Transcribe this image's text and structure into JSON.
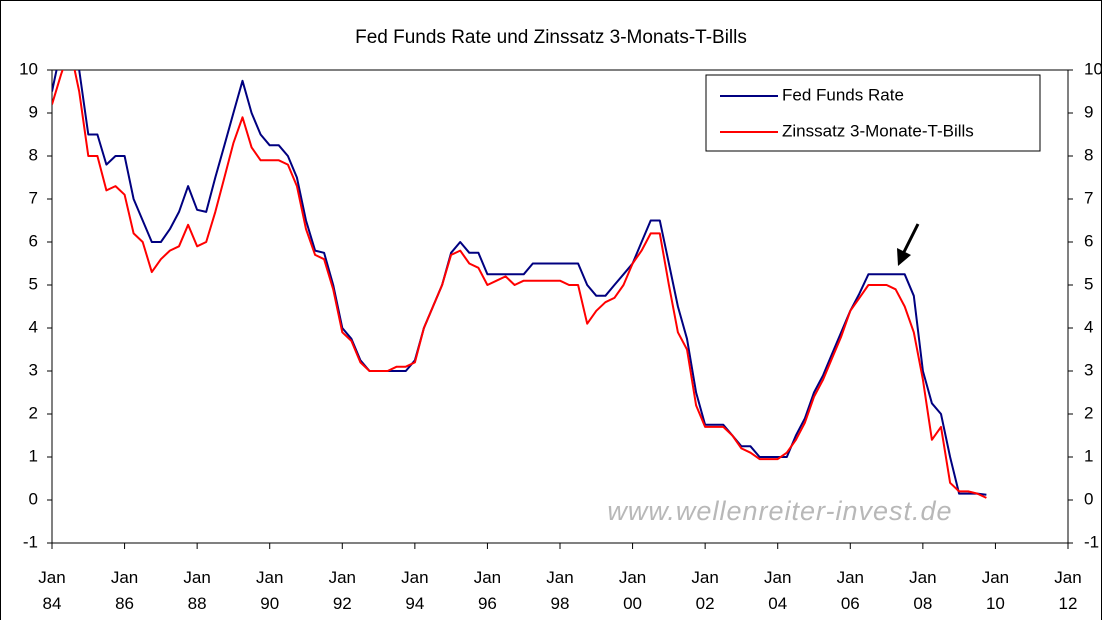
{
  "chart_data": {
    "type": "line",
    "title": "Fed Funds Rate und Zinssatz 3-Monats-T-Bills",
    "annotations": [
      "www.wellenreiter-invest.de"
    ],
    "x": [
      1984,
      1984.25,
      1984.5,
      1984.75,
      1985,
      1985.25,
      1985.5,
      1985.75,
      1986,
      1986.25,
      1986.5,
      1986.75,
      1987,
      1987.25,
      1987.5,
      1987.75,
      1988,
      1988.25,
      1988.5,
      1988.75,
      1989,
      1989.25,
      1989.5,
      1989.75,
      1990,
      1990.25,
      1990.5,
      1990.75,
      1991,
      1991.25,
      1991.5,
      1991.75,
      1992,
      1992.25,
      1992.5,
      1992.75,
      1993,
      1993.25,
      1993.5,
      1993.75,
      1994,
      1994.25,
      1994.5,
      1994.75,
      1995,
      1995.25,
      1995.5,
      1995.75,
      1996,
      1996.25,
      1996.5,
      1996.75,
      1997,
      1997.25,
      1997.5,
      1997.75,
      1998,
      1998.25,
      1998.5,
      1998.75,
      1999,
      1999.25,
      1999.5,
      1999.75,
      2000,
      2000.25,
      2000.5,
      2000.75,
      2001,
      2001.25,
      2001.5,
      2001.75,
      2002,
      2002.25,
      2002.5,
      2002.75,
      2003,
      2003.25,
      2003.5,
      2003.75,
      2004,
      2004.25,
      2004.5,
      2004.75,
      2005,
      2005.25,
      2005.5,
      2005.75,
      2006,
      2006.25,
      2006.5,
      2006.75,
      2007,
      2007.25,
      2007.5,
      2007.75,
      2008,
      2008.25,
      2008.5,
      2008.75,
      2009,
      2009.25,
      2009.5,
      2009.75
    ],
    "series": [
      {
        "name": "Fed Funds Rate",
        "color": "#000080",
        "values": [
          9.5,
          10.5,
          11.5,
          10,
          8.5,
          8.5,
          7.8,
          8.0,
          8.0,
          7.0,
          6.5,
          6.0,
          6.0,
          6.3,
          6.7,
          7.3,
          6.75,
          6.7,
          7.5,
          8.25,
          9.0,
          9.75,
          9.0,
          8.5,
          8.25,
          8.25,
          8.0,
          7.5,
          6.5,
          5.8,
          5.75,
          5.0,
          4.0,
          3.75,
          3.25,
          3.0,
          3.0,
          3.0,
          3.0,
          3.0,
          3.25,
          4.0,
          4.5,
          5.0,
          5.75,
          6.0,
          5.75,
          5.75,
          5.25,
          5.25,
          5.25,
          5.25,
          5.25,
          5.5,
          5.5,
          5.5,
          5.5,
          5.5,
          5.5,
          5.0,
          4.75,
          4.75,
          5.0,
          5.25,
          5.5,
          6.0,
          6.5,
          6.5,
          5.5,
          4.5,
          3.75,
          2.5,
          1.75,
          1.75,
          1.75,
          1.5,
          1.25,
          1.25,
          1.0,
          1.0,
          1.0,
          1.0,
          1.5,
          1.9,
          2.5,
          2.9,
          3.4,
          3.9,
          4.4,
          4.8,
          5.25,
          5.25,
          5.25,
          5.25,
          5.25,
          4.75,
          3.0,
          2.25,
          2.0,
          1.0,
          0.15,
          0.15,
          0.15,
          0.12
        ]
      },
      {
        "name": "Zinssatz 3-Monate-T-Bills",
        "color": "#ff0000",
        "values": [
          9.2,
          9.9,
          10.5,
          9.5,
          8.0,
          8.0,
          7.2,
          7.3,
          7.1,
          6.2,
          6.0,
          5.3,
          5.6,
          5.8,
          5.9,
          6.4,
          5.9,
          6.0,
          6.7,
          7.5,
          8.3,
          8.9,
          8.2,
          7.9,
          7.9,
          7.9,
          7.8,
          7.3,
          6.3,
          5.7,
          5.6,
          4.9,
          3.9,
          3.7,
          3.2,
          3.0,
          3.0,
          3.0,
          3.1,
          3.1,
          3.2,
          4.0,
          4.5,
          5.0,
          5.7,
          5.8,
          5.5,
          5.4,
          5.0,
          5.1,
          5.2,
          5.0,
          5.1,
          5.1,
          5.1,
          5.1,
          5.1,
          5.0,
          5.0,
          4.1,
          4.4,
          4.6,
          4.7,
          5.0,
          5.5,
          5.8,
          6.2,
          6.2,
          5.0,
          3.9,
          3.5,
          2.2,
          1.7,
          1.7,
          1.7,
          1.5,
          1.2,
          1.1,
          0.95,
          0.95,
          0.95,
          1.1,
          1.4,
          1.8,
          2.4,
          2.8,
          3.3,
          3.8,
          4.4,
          4.7,
          5.0,
          5.0,
          5.0,
          4.9,
          4.5,
          3.9,
          2.8,
          1.4,
          1.7,
          0.4,
          0.2,
          0.2,
          0.15,
          0.05
        ]
      }
    ],
    "xlim": [
      1984,
      2012
    ],
    "xticks": [
      {
        "value": 1984,
        "label": "Jan\n84"
      },
      {
        "value": 1986,
        "label": "Jan\n86"
      },
      {
        "value": 1988,
        "label": "Jan\n88"
      },
      {
        "value": 1990,
        "label": "Jan\n90"
      },
      {
        "value": 1992,
        "label": "Jan\n92"
      },
      {
        "value": 1994,
        "label": "Jan\n94"
      },
      {
        "value": 1996,
        "label": "Jan\n96"
      },
      {
        "value": 1998,
        "label": "Jan\n98"
      },
      {
        "value": 2000,
        "label": "Jan\n00"
      },
      {
        "value": 2002,
        "label": "Jan\n02"
      },
      {
        "value": 2004,
        "label": "Jan\n04"
      },
      {
        "value": 2006,
        "label": "Jan\n06"
      },
      {
        "value": 2008,
        "label": "Jan\n08"
      },
      {
        "value": 2010,
        "label": "Jan\n10"
      },
      {
        "value": 2012,
        "label": "Jan\n12"
      }
    ],
    "ylim": [
      -1,
      10
    ],
    "yticks": [
      -1,
      0,
      1,
      2,
      3,
      4,
      5,
      6,
      7,
      8,
      9,
      10
    ],
    "y2lim": [
      -1,
      10
    ],
    "y2ticks": [
      -1,
      0,
      1,
      2,
      3,
      4,
      5,
      6,
      7,
      8,
      9,
      10
    ],
    "grid": false,
    "legend": "top-right"
  }
}
